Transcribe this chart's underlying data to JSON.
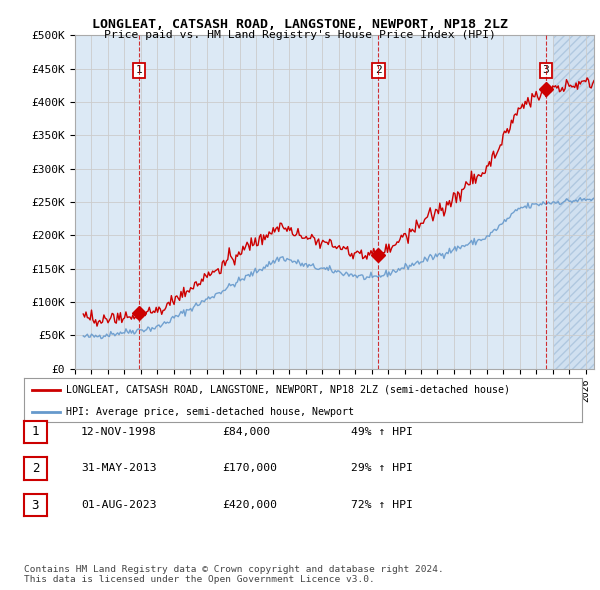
{
  "title": "LONGLEAT, CATSASH ROAD, LANGSTONE, NEWPORT, NP18 2LZ",
  "subtitle": "Price paid vs. HM Land Registry's House Price Index (HPI)",
  "ylabel_ticks": [
    "£0",
    "£50K",
    "£100K",
    "£150K",
    "£200K",
    "£250K",
    "£300K",
    "£350K",
    "£400K",
    "£450K",
    "£500K"
  ],
  "ytick_values": [
    0,
    50000,
    100000,
    150000,
    200000,
    250000,
    300000,
    350000,
    400000,
    450000,
    500000
  ],
  "xlim": [
    1995.5,
    2026.5
  ],
  "ylim": [
    0,
    500000
  ],
  "grid_color": "#cccccc",
  "chart_bg_color": "#dce9f5",
  "background_color": "#ffffff",
  "hpi_color": "#6699cc",
  "price_color": "#cc0000",
  "hatch_color": "#c8d8e8",
  "transactions": [
    {
      "date_num": 1998.87,
      "price": 84000,
      "label": "1"
    },
    {
      "date_num": 2013.42,
      "price": 170000,
      "label": "2"
    },
    {
      "date_num": 2023.58,
      "price": 420000,
      "label": "3"
    }
  ],
  "sale_dates": [
    1998.87,
    2013.42,
    2023.58
  ],
  "legend_entries": [
    "LONGLEAT, CATSASH ROAD, LANGSTONE, NEWPORT, NP18 2LZ (semi-detached house)",
    "HPI: Average price, semi-detached house, Newport"
  ],
  "table_rows": [
    {
      "num": "1",
      "date": "12-NOV-1998",
      "price": "£84,000",
      "hpi": "49% ↑ HPI"
    },
    {
      "num": "2",
      "date": "31-MAY-2013",
      "price": "£170,000",
      "hpi": "29% ↑ HPI"
    },
    {
      "num": "3",
      "date": "01-AUG-2023",
      "price": "£420,000",
      "hpi": "72% ↑ HPI"
    }
  ],
  "footer": "Contains HM Land Registry data © Crown copyright and database right 2024.\nThis data is licensed under the Open Government Licence v3.0."
}
